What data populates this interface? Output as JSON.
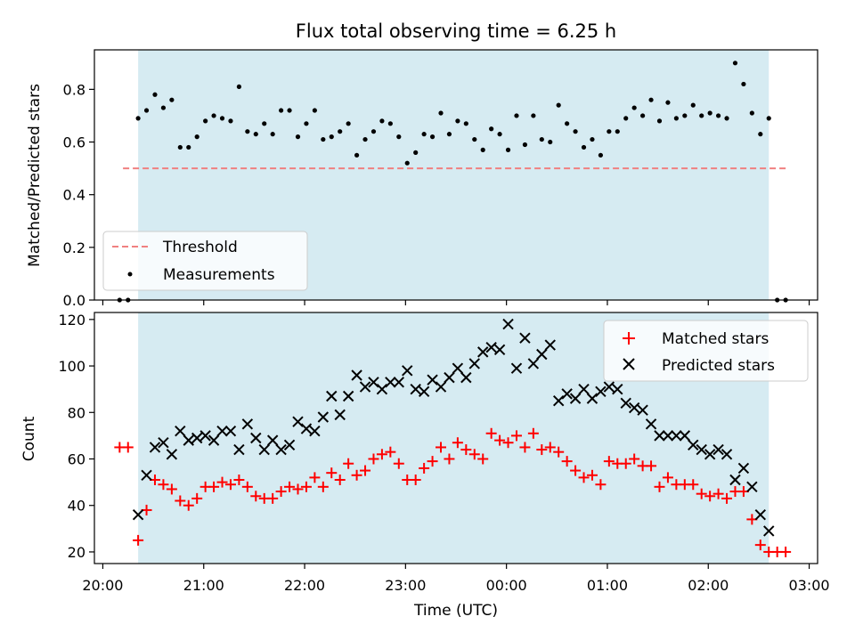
{
  "title": "Flux total observing time = 6.25 h",
  "colors": {
    "shade": "#add8e6",
    "threshold": "#f08080",
    "measurement": "#000000",
    "matched": "#ff0000",
    "predicted": "#000000"
  },
  "chart_data": [
    {
      "type": "scatter",
      "ylabel": "Matched/Predicted stars",
      "ylim": [
        0,
        0.95
      ],
      "yticks": [
        "0.0",
        "0.2",
        "0.4",
        "0.6",
        "0.8"
      ],
      "xlim": [
        "19:55",
        "03:05"
      ],
      "observing_window": [
        "20:21",
        "02:36"
      ],
      "threshold": {
        "label": "Threshold",
        "y": 0.5,
        "x": [
          "20:12",
          "02:46"
        ]
      },
      "legend": [
        "Threshold",
        "Measurements"
      ],
      "legend_position": "lower-left",
      "series": [
        {
          "name": "Measurements",
          "marker": "dot",
          "points": [
            [
              "20:10",
              0.0
            ],
            [
              "20:15",
              0.0
            ],
            [
              "20:21",
              0.69
            ],
            [
              "20:26",
              0.72
            ],
            [
              "20:31",
              0.78
            ],
            [
              "20:36",
              0.73
            ],
            [
              "20:41",
              0.76
            ],
            [
              "20:46",
              0.58
            ],
            [
              "20:51",
              0.58
            ],
            [
              "20:56",
              0.62
            ],
            [
              "21:01",
              0.68
            ],
            [
              "21:06",
              0.7
            ],
            [
              "21:11",
              0.69
            ],
            [
              "21:16",
              0.68
            ],
            [
              "21:21",
              0.81
            ],
            [
              "21:26",
              0.64
            ],
            [
              "21:31",
              0.63
            ],
            [
              "21:36",
              0.67
            ],
            [
              "21:41",
              0.63
            ],
            [
              "21:46",
              0.72
            ],
            [
              "21:51",
              0.72
            ],
            [
              "21:56",
              0.62
            ],
            [
              "22:01",
              0.67
            ],
            [
              "22:06",
              0.72
            ],
            [
              "22:11",
              0.61
            ],
            [
              "22:16",
              0.62
            ],
            [
              "22:21",
              0.64
            ],
            [
              "22:26",
              0.67
            ],
            [
              "22:31",
              0.55
            ],
            [
              "22:36",
              0.61
            ],
            [
              "22:41",
              0.64
            ],
            [
              "22:46",
              0.68
            ],
            [
              "22:51",
              0.67
            ],
            [
              "22:56",
              0.62
            ],
            [
              "23:01",
              0.52
            ],
            [
              "23:06",
              0.56
            ],
            [
              "23:11",
              0.63
            ],
            [
              "23:16",
              0.62
            ],
            [
              "23:21",
              0.71
            ],
            [
              "23:26",
              0.63
            ],
            [
              "23:31",
              0.68
            ],
            [
              "23:36",
              0.67
            ],
            [
              "23:41",
              0.61
            ],
            [
              "23:46",
              0.57
            ],
            [
              "23:51",
              0.65
            ],
            [
              "23:56",
              0.63
            ],
            [
              "00:01",
              0.57
            ],
            [
              "00:06",
              0.7
            ],
            [
              "00:11",
              0.59
            ],
            [
              "00:16",
              0.7
            ],
            [
              "00:21",
              0.61
            ],
            [
              "00:26",
              0.6
            ],
            [
              "00:31",
              0.74
            ],
            [
              "00:36",
              0.67
            ],
            [
              "00:41",
              0.64
            ],
            [
              "00:46",
              0.58
            ],
            [
              "00:51",
              0.61
            ],
            [
              "00:56",
              0.55
            ],
            [
              "01:01",
              0.64
            ],
            [
              "01:06",
              0.64
            ],
            [
              "01:11",
              0.69
            ],
            [
              "01:16",
              0.73
            ],
            [
              "01:21",
              0.7
            ],
            [
              "01:26",
              0.76
            ],
            [
              "01:31",
              0.68
            ],
            [
              "01:36",
              0.75
            ],
            [
              "01:41",
              0.69
            ],
            [
              "01:46",
              0.7
            ],
            [
              "01:51",
              0.74
            ],
            [
              "01:56",
              0.7
            ],
            [
              "02:01",
              0.71
            ],
            [
              "02:06",
              0.7
            ],
            [
              "02:11",
              0.69
            ],
            [
              "02:16",
              0.9
            ],
            [
              "02:21",
              0.82
            ],
            [
              "02:26",
              0.71
            ],
            [
              "02:31",
              0.63
            ],
            [
              "02:36",
              0.69
            ],
            [
              "02:41",
              0.0
            ],
            [
              "02:46",
              0.0
            ]
          ]
        }
      ]
    },
    {
      "type": "scatter",
      "xlabel": "Time (UTC)",
      "ylabel": "Count",
      "ylim": [
        15,
        123
      ],
      "yticks": [
        "20",
        "40",
        "60",
        "80",
        "100",
        "120"
      ],
      "xlim": [
        "19:55",
        "03:05"
      ],
      "xticks": [
        "20:00",
        "21:00",
        "22:00",
        "23:00",
        "00:00",
        "01:00",
        "02:00",
        "03:00"
      ],
      "observing_window": [
        "20:21",
        "02:36"
      ],
      "legend": [
        "Matched stars",
        "Predicted stars"
      ],
      "legend_position": "top-right",
      "series": [
        {
          "name": "Matched stars",
          "marker": "plus",
          "points": [
            [
              "20:10",
              65
            ],
            [
              "20:15",
              65
            ],
            [
              "20:21",
              25
            ],
            [
              "20:26",
              38
            ],
            [
              "20:31",
              51
            ],
            [
              "20:36",
              49
            ],
            [
              "20:41",
              47
            ],
            [
              "20:46",
              42
            ],
            [
              "20:51",
              40
            ],
            [
              "20:56",
              43
            ],
            [
              "21:01",
              48
            ],
            [
              "21:06",
              48
            ],
            [
              "21:11",
              50
            ],
            [
              "21:16",
              49
            ],
            [
              "21:21",
              51
            ],
            [
              "21:26",
              48
            ],
            [
              "21:31",
              44
            ],
            [
              "21:36",
              43
            ],
            [
              "21:41",
              43
            ],
            [
              "21:46",
              46
            ],
            [
              "21:51",
              48
            ],
            [
              "21:56",
              47
            ],
            [
              "22:01",
              48
            ],
            [
              "22:06",
              52
            ],
            [
              "22:11",
              48
            ],
            [
              "22:16",
              54
            ],
            [
              "22:21",
              51
            ],
            [
              "22:26",
              58
            ],
            [
              "22:31",
              53
            ],
            [
              "22:36",
              55
            ],
            [
              "22:41",
              60
            ],
            [
              "22:46",
              62
            ],
            [
              "22:51",
              63
            ],
            [
              "22:56",
              58
            ],
            [
              "23:01",
              51
            ],
            [
              "23:06",
              51
            ],
            [
              "23:11",
              56
            ],
            [
              "23:16",
              59
            ],
            [
              "23:21",
              65
            ],
            [
              "23:26",
              60
            ],
            [
              "23:31",
              67
            ],
            [
              "23:36",
              64
            ],
            [
              "23:41",
              62
            ],
            [
              "23:46",
              60
            ],
            [
              "23:51",
              71
            ],
            [
              "23:56",
              68
            ],
            [
              "00:01",
              67
            ],
            [
              "00:06",
              70
            ],
            [
              "00:11",
              65
            ],
            [
              "00:16",
              71
            ],
            [
              "00:21",
              64
            ],
            [
              "00:26",
              65
            ],
            [
              "00:31",
              63
            ],
            [
              "00:36",
              59
            ],
            [
              "00:41",
              55
            ],
            [
              "00:46",
              52
            ],
            [
              "00:51",
              53
            ],
            [
              "00:56",
              49
            ],
            [
              "01:01",
              59
            ],
            [
              "01:06",
              58
            ],
            [
              "01:11",
              58
            ],
            [
              "01:16",
              60
            ],
            [
              "01:21",
              57
            ],
            [
              "01:26",
              57
            ],
            [
              "01:31",
              48
            ],
            [
              "01:36",
              52
            ],
            [
              "01:41",
              49
            ],
            [
              "01:46",
              49
            ],
            [
              "01:51",
              49
            ],
            [
              "01:56",
              45
            ],
            [
              "02:01",
              44
            ],
            [
              "02:06",
              45
            ],
            [
              "02:11",
              43
            ],
            [
              "02:16",
              46
            ],
            [
              "02:21",
              46
            ],
            [
              "02:26",
              34
            ],
            [
              "02:31",
              23
            ],
            [
              "02:36",
              20
            ],
            [
              "02:41",
              20
            ],
            [
              "02:46",
              20
            ]
          ]
        },
        {
          "name": "Predicted stars",
          "marker": "x",
          "points": [
            [
              "20:21",
              36
            ],
            [
              "20:26",
              53
            ],
            [
              "20:31",
              65
            ],
            [
              "20:36",
              67
            ],
            [
              "20:41",
              62
            ],
            [
              "20:46",
              72
            ],
            [
              "20:51",
              68
            ],
            [
              "20:56",
              69
            ],
            [
              "21:01",
              70
            ],
            [
              "21:06",
              68
            ],
            [
              "21:11",
              72
            ],
            [
              "21:16",
              72
            ],
            [
              "21:21",
              64
            ],
            [
              "21:26",
              75
            ],
            [
              "21:31",
              69
            ],
            [
              "21:36",
              64
            ],
            [
              "21:41",
              68
            ],
            [
              "21:46",
              64
            ],
            [
              "21:51",
              66
            ],
            [
              "21:56",
              76
            ],
            [
              "22:01",
              73
            ],
            [
              "22:06",
              72
            ],
            [
              "22:11",
              78
            ],
            [
              "22:16",
              87
            ],
            [
              "22:21",
              79
            ],
            [
              "22:26",
              87
            ],
            [
              "22:31",
              96
            ],
            [
              "22:36",
              91
            ],
            [
              "22:41",
              93
            ],
            [
              "22:46",
              90
            ],
            [
              "22:51",
              93
            ],
            [
              "22:56",
              93
            ],
            [
              "23:01",
              98
            ],
            [
              "23:06",
              90
            ],
            [
              "23:11",
              89
            ],
            [
              "23:16",
              94
            ],
            [
              "23:21",
              91
            ],
            [
              "23:26",
              95
            ],
            [
              "23:31",
              99
            ],
            [
              "23:36",
              95
            ],
            [
              "23:41",
              101
            ],
            [
              "23:46",
              106
            ],
            [
              "23:51",
              108
            ],
            [
              "23:56",
              107
            ],
            [
              "00:01",
              118
            ],
            [
              "00:06",
              99
            ],
            [
              "00:11",
              112
            ],
            [
              "00:16",
              101
            ],
            [
              "00:21",
              105
            ],
            [
              "00:26",
              109
            ],
            [
              "00:31",
              85
            ],
            [
              "00:36",
              88
            ],
            [
              "00:41",
              86
            ],
            [
              "00:46",
              90
            ],
            [
              "00:51",
              86
            ],
            [
              "00:56",
              89
            ],
            [
              "01:01",
              91
            ],
            [
              "01:06",
              90
            ],
            [
              "01:11",
              84
            ],
            [
              "01:16",
              82
            ],
            [
              "01:21",
              81
            ],
            [
              "01:26",
              75
            ],
            [
              "01:31",
              70
            ],
            [
              "01:36",
              70
            ],
            [
              "01:41",
              70
            ],
            [
              "01:46",
              70
            ],
            [
              "01:51",
              66
            ],
            [
              "01:56",
              64
            ],
            [
              "02:01",
              62
            ],
            [
              "02:06",
              64
            ],
            [
              "02:11",
              62
            ],
            [
              "02:16",
              51
            ],
            [
              "02:21",
              56
            ],
            [
              "02:26",
              48
            ],
            [
              "02:31",
              36
            ],
            [
              "02:36",
              29
            ]
          ]
        }
      ]
    }
  ]
}
